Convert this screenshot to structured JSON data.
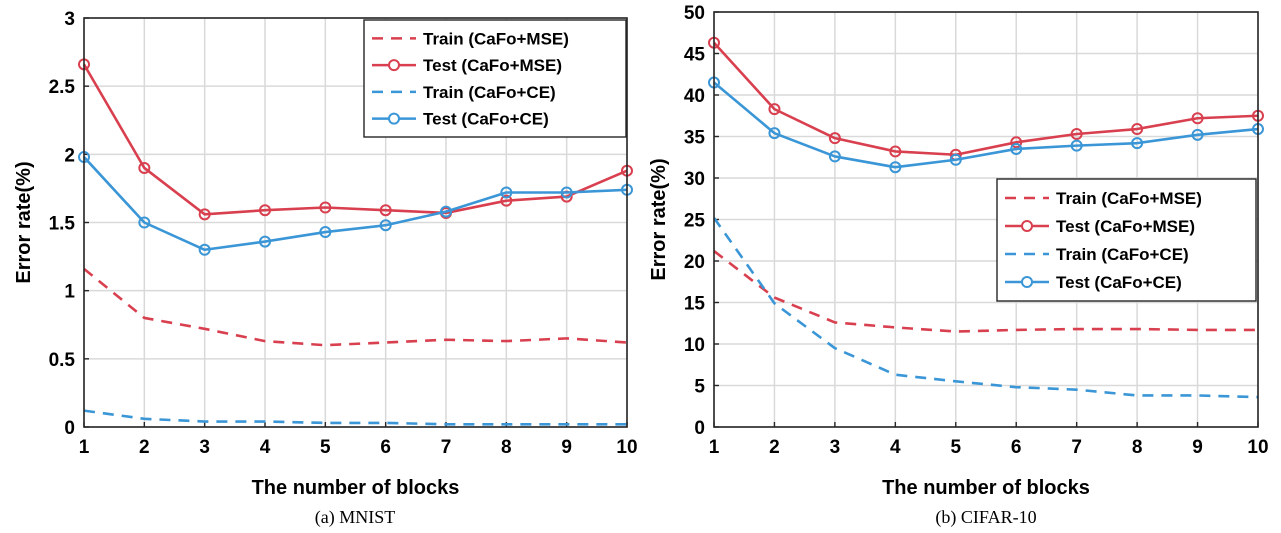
{
  "colors": {
    "mse": "#d9404f",
    "ce": "#3a96d6"
  },
  "chart_data": [
    {
      "type": "line",
      "caption": "(a) MNIST",
      "xlabel": "The number of blocks",
      "ylabel": "Error rate(%)",
      "xlim": [
        1,
        10
      ],
      "ylim": [
        0,
        3
      ],
      "xticks": [
        "1",
        "2",
        "3",
        "4",
        "5",
        "6",
        "7",
        "8",
        "9",
        "10"
      ],
      "yticks": [
        "0",
        "0.5",
        "1",
        "1.5",
        "2",
        "2.5",
        "3"
      ],
      "ytick_values": [
        0,
        0.5,
        1,
        1.5,
        2,
        2.5,
        3
      ],
      "grid": true,
      "legend_position": "top-right",
      "x": [
        1,
        2,
        3,
        4,
        5,
        6,
        7,
        8,
        9,
        10
      ],
      "series": [
        {
          "name": "Train (CaFo+MSE)",
          "color_key": "mse",
          "style": "dashed",
          "marker": false,
          "values": [
            1.16,
            0.8,
            0.72,
            0.63,
            0.6,
            0.62,
            0.64,
            0.63,
            0.65,
            0.62
          ]
        },
        {
          "name": "Test (CaFo+MSE)",
          "color_key": "mse",
          "style": "solid",
          "marker": true,
          "values": [
            2.66,
            1.9,
            1.56,
            1.59,
            1.61,
            1.59,
            1.57,
            1.66,
            1.69,
            1.88
          ]
        },
        {
          "name": "Train (CaFo+CE)",
          "color_key": "ce",
          "style": "dashed",
          "marker": false,
          "values": [
            0.12,
            0.06,
            0.04,
            0.04,
            0.03,
            0.03,
            0.02,
            0.02,
            0.02,
            0.02
          ]
        },
        {
          "name": "Test (CaFo+CE)",
          "color_key": "ce",
          "style": "solid",
          "marker": true,
          "values": [
            1.98,
            1.5,
            1.3,
            1.36,
            1.43,
            1.48,
            1.58,
            1.72,
            1.72,
            1.74
          ]
        }
      ]
    },
    {
      "type": "line",
      "caption": "(b) CIFAR-10",
      "xlabel": "The number of blocks",
      "ylabel": "Error rate(%)",
      "xlim": [
        1,
        10
      ],
      "ylim": [
        0,
        50
      ],
      "xticks": [
        "1",
        "2",
        "3",
        "4",
        "5",
        "6",
        "7",
        "8",
        "9",
        "10"
      ],
      "yticks": [
        "0",
        "5",
        "10",
        "15",
        "20",
        "25",
        "30",
        "35",
        "40",
        "45",
        "50"
      ],
      "ytick_values": [
        0,
        5,
        10,
        15,
        20,
        25,
        30,
        35,
        40,
        45,
        50
      ],
      "grid": true,
      "legend_position": "middle-right",
      "x": [
        1,
        2,
        3,
        4,
        5,
        6,
        7,
        8,
        9,
        10
      ],
      "series": [
        {
          "name": "Train (CaFo+MSE)",
          "color_key": "mse",
          "style": "dashed",
          "marker": false,
          "values": [
            21.2,
            15.6,
            12.6,
            12.0,
            11.5,
            11.7,
            11.8,
            11.8,
            11.7,
            11.7
          ]
        },
        {
          "name": "Test (CaFo+MSE)",
          "color_key": "mse",
          "style": "solid",
          "marker": true,
          "values": [
            46.3,
            38.3,
            34.8,
            33.2,
            32.8,
            34.3,
            35.3,
            35.9,
            37.2,
            37.5
          ]
        },
        {
          "name": "Train (CaFo+CE)",
          "color_key": "ce",
          "style": "dashed",
          "marker": false,
          "values": [
            25.2,
            14.9,
            9.5,
            6.3,
            5.5,
            4.8,
            4.5,
            3.8,
            3.8,
            3.6
          ]
        },
        {
          "name": "Test (CaFo+CE)",
          "color_key": "ce",
          "style": "solid",
          "marker": true,
          "values": [
            41.5,
            35.4,
            32.6,
            31.3,
            32.2,
            33.5,
            33.9,
            34.2,
            35.2,
            35.9
          ]
        }
      ]
    }
  ]
}
